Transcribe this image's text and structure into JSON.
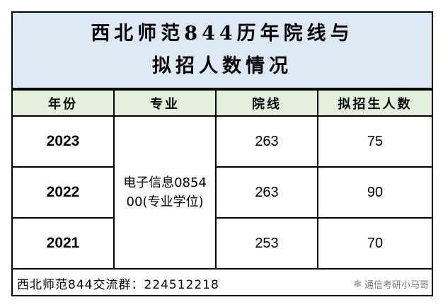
{
  "title": {
    "line1": "西北师范844历年院线与",
    "line2": "拟招人数情况"
  },
  "headers": [
    "年份",
    "专业",
    "院线",
    "拟招生人数"
  ],
  "major": "电子信息085400(专业学位)",
  "rows": [
    {
      "year": "2023",
      "line": "263",
      "quota": "75"
    },
    {
      "year": "2022",
      "line": "263",
      "quota": "90"
    },
    {
      "year": "2021",
      "line": "253",
      "quota": "70"
    }
  ],
  "footer": "西北师范844交流群：224512218",
  "watermark": {
    "icon": "wechat-icon",
    "text": "通信考研小马哥"
  }
}
